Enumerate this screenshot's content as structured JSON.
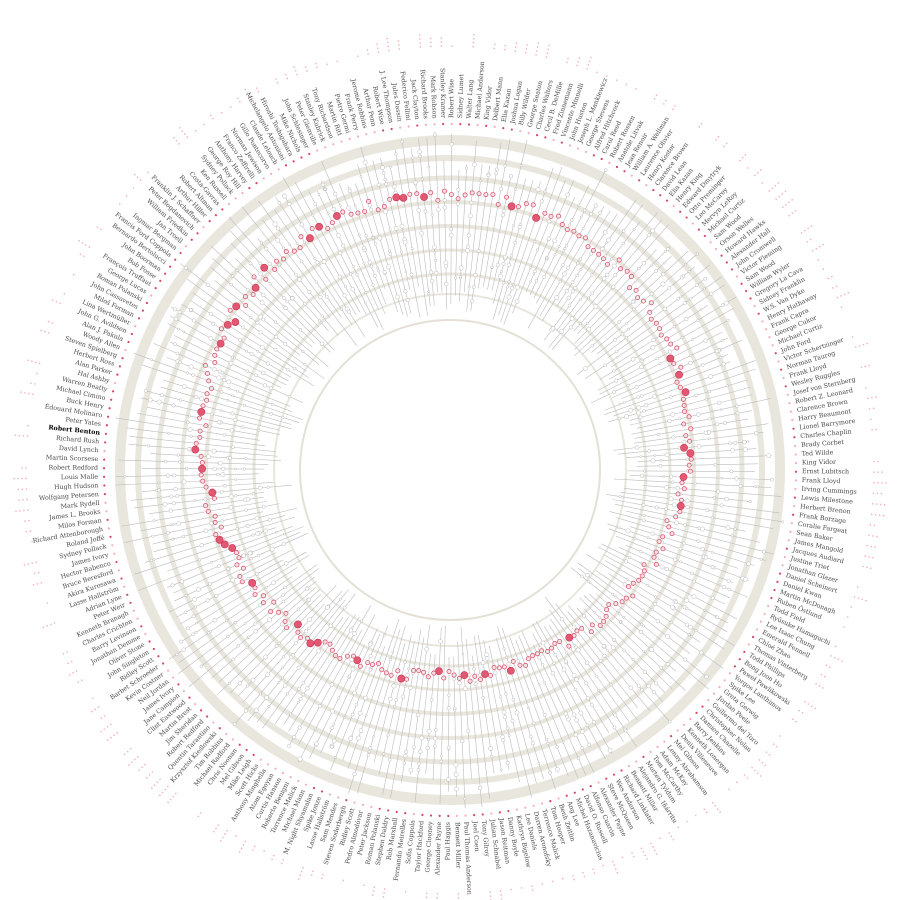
{
  "chart_data": {
    "type": "radial-dot",
    "title": "",
    "legend": "none",
    "highlighted": "Robert Benton",
    "colors": {
      "win": "#d64560",
      "nomination": "#a8a8a8",
      "ring": "#e9e6dd",
      "spoke": "#bcbcbc"
    },
    "directors": [
      "Robert Benton",
      "Peter Yates",
      "Édouard Molinaro",
      "Buck Henry",
      "Michael Cimino",
      "Warren Beatty",
      "Hal Ashby",
      "Alan Parker",
      "Herbert Ross",
      "Steven Spielberg",
      "Woody Allen",
      "Alan J. Pakula",
      "John G. Avildsen",
      "Lina Wertmüller",
      "Miloš Forman",
      "John Cassavetes",
      "Roman Polanski",
      "George Lucas",
      "François Truffaut",
      "Bob Fosse",
      "John Boorman",
      "Bernardo Bertolucci",
      "Francis Ford Coppola",
      "Ingmar Bergman",
      "Jan Troell",
      "William Friedkin",
      "Peter Bogdanovich",
      "Franklin J. Schaffner",
      "Arthur Hiller",
      "Robert Altman",
      "Costa-Gavras",
      "Ken Russell",
      "Sydney Pollack",
      "George Roy Hill",
      "Anthony Harvey",
      "Franco Zeffirelli",
      "Norman Jewison",
      "Gillo Pontecorvo",
      "Claude Lelouch",
      "Michelangelo Antonioni",
      "Hiroshi Teshigahara",
      "Mike Nichols",
      "John Schlesinger",
      "Peter Glenville",
      "Stanley Kubrick",
      "Tony Richardson",
      "Martin Ritt",
      "Pietro Germi",
      "Frank Perry",
      "Jerome Robbins",
      "Arthur Penn",
      "Robert Wise",
      "J. Lee Thompson",
      "Jules Dassin",
      "Federico Fellini",
      "Jack Clayton",
      "Richard Brooks",
      "Mark Robson",
      "Stanley Kramer",
      "Robert Wise",
      "Sidney Lumet",
      "Walter Lang",
      "Michael Anderson",
      "King Vidor",
      "Delbert Mann",
      "Elia Kazan",
      "Joshua Logan",
      "Billy Wilder",
      "George Seaton",
      "Charles Walters",
      "Cecil B. DeMille",
      "Fred Zinnemann",
      "Vincente Minnelli",
      "John Huston",
      "Joseph L. Mankiewicz",
      "George Stevens",
      "Alfred Hitchcock",
      "Carol Reed",
      "Robert Rossen",
      "Anatole Litvak",
      "Jean Renoir",
      "William A. Wellman",
      "Laurence Olivier",
      "Henry Koster",
      "Clarence Brown",
      "David Lean",
      "Elia Kazan",
      "Henry King",
      "Edward Dmytryk",
      "Otto Preminger",
      "Leo McCarey",
      "Mervyn LeRoy",
      "Michael Curtiz",
      "Sam Wood",
      "Orson Welles",
      "Howard Hawks",
      "Alexander Hall",
      "John Cromwell",
      "Victor Fleming",
      "Sam Wood",
      "William Wyler",
      "Gregory La Cava",
      "Sidney Franklin",
      "W.S. Van Dyke",
      "Henry Hathaway",
      "Frank Capra",
      "George Cukor",
      "Michael Curtiz",
      "John Ford",
      "Victor Schertzinger",
      "Norman Taurog",
      "Frank Lloyd",
      "Wesley Ruggles",
      "Josef von Sternberg",
      "Robert Z. Leonard",
      "Clarence Brown",
      "Harry Beaumont",
      "Lionel Barrymore",
      "Charles Chaplin",
      "Brady Corbet",
      "Ted Wilde",
      "King Vidor",
      "Ernst Lubitsch",
      "Frank Lloyd",
      "Irving Cummings",
      "Lewis Milestone",
      "Herbert Brenon",
      "Frank Borzage",
      "Coralie Fargeat",
      "Sean Baker",
      "James Mangold",
      "Jacques Audiard",
      "Justine Triet",
      "Jonathan Glazer",
      "Daniel Scheinert",
      "Daniel Kwan",
      "Martin McDonagh",
      "Ruben Östlund",
      "Todd Field",
      "Ryūsuke Hamaguchi",
      "Lee Isaac Chung",
      "Emerald Fennell",
      "Chloé Zhao",
      "Thomas Vinterberg",
      "Todd Phillips",
      "Bong Joon Ho",
      "Paweł Pawlikowski",
      "Yorgos Lanthimos",
      "Spike Lee",
      "Greta Gerwig",
      "Jordan Peele",
      "Guillermo del Toro",
      "Christopher Nolan",
      "Damien Chazelle",
      "Barry Jenkins",
      "Kenneth Lonergan",
      "Denis Villeneuve",
      "Mel Gibson",
      "Lenny Abrahamson",
      "Adam McKay",
      "Tom McCarthy",
      "Morten Tyldum",
      "Alejandro G. Iñárritu",
      "Bennett Miller",
      "Richard Linklater",
      "Wes Anderson",
      "Steve McQueen",
      "Alexander Payne",
      "Alfonso Cuarón",
      "David O. Russell",
      "Michel Hazanavicius",
      "Ang Lee",
      "Benh Zeitlin",
      "Tom Hooper",
      "Terrence Malick",
      "Darren Aronofsky",
      "Lee Daniels",
      "Kathryn Bigelow",
      "Danny Boyle",
      "Jason Reitman",
      "Julian Schnabel",
      "Tony Gilroy",
      "Joel Coen",
      "Paul Thomas Anderson",
      "Bennett Miller",
      "Paul Haggis",
      "Alexander Payne",
      "George Clooney",
      "Taylor Hackford",
      "Sofia Coppola",
      "Fernando Meirelles",
      "Rob Marshall",
      "Stephen Daldry",
      "Roman Polanski",
      "Peter Jackson",
      "Pedro Almodóvar",
      "Ridley Scott",
      "Steven Soderbergh",
      "Sam Mendes",
      "Lasse Hallström",
      "Spike Jonze",
      "M. Night Shyamalan",
      "Michael Mann",
      "Terrence Malick",
      "Roberto Benigni",
      "Curtis Hanson",
      "Atom Egoyan",
      "Anthony Minghella",
      "Scott Hicks",
      "Mike Leigh",
      "Mel Gibson",
      "Chris Noonan",
      "Michael Radford",
      "Tim Robbins",
      "Krzysztof Kieślowski",
      "Quentin Tarantino",
      "Robert Redford",
      "Jim Sheridan",
      "Martin Brest",
      "Clint Eastwood",
      "Jane Campion",
      "James Ivory",
      "Neil Jordan",
      "Kevin Costner",
      "Barbet Schroeder",
      "Ridley Scott",
      "John Singleton",
      "Oliver Stone",
      "Jonathan Demme",
      "Barry Levinson",
      "Charles Crichton",
      "Kenneth Branagh",
      "Peter Weir",
      "Adrian Lyne",
      "Lasse Hallström",
      "Akira Kurosawa",
      "Bruce Beresford",
      "Hector Babenco",
      "James Ivory",
      "Sydney Pollack",
      "Roland Joffé",
      "Richard Attenborough",
      "Milos Forman",
      "James L. Brooks",
      "Mark Rydell",
      "Wolfgang Petersen",
      "Hugh Hudson",
      "Louis Malle",
      "Robert Redford",
      "Martin Scorsese",
      "David Lynch",
      "Richard Rush"
    ]
  }
}
